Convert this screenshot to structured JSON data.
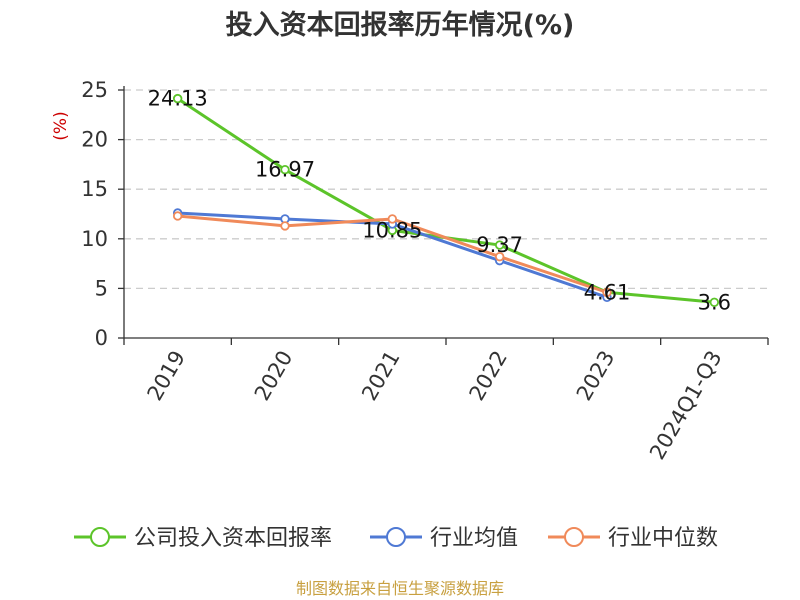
{
  "chart_data": {
    "type": "line",
    "title": "投入资本回报率历年情况(%)",
    "ylabel": "(%)",
    "xlabel": "",
    "categories": [
      "2019",
      "2020",
      "2021",
      "2022",
      "2023",
      "2024Q1-Q3"
    ],
    "ylim": [
      0,
      25
    ],
    "yticks": [
      0,
      5,
      10,
      15,
      20,
      25
    ],
    "grid": "horizontal dashed",
    "legend_position": "bottom",
    "series": [
      {
        "name": "公司投入资本回报率",
        "color": "#5cc42a",
        "values": [
          24.13,
          16.97,
          10.85,
          9.37,
          4.61,
          3.6
        ],
        "data_labels": [
          "24.13",
          "16.97",
          "10.85",
          "9.37",
          "4.61",
          "3.6"
        ]
      },
      {
        "name": "行业均值",
        "color": "#4f79d4",
        "values": [
          12.6,
          12.0,
          11.5,
          7.8,
          4.1,
          null
        ]
      },
      {
        "name": "行业中位数",
        "color": "#f08a5a",
        "values": [
          12.3,
          11.3,
          12.0,
          8.2,
          4.6,
          null
        ]
      }
    ],
    "source": "制图数据来自恒生聚源数据库"
  }
}
